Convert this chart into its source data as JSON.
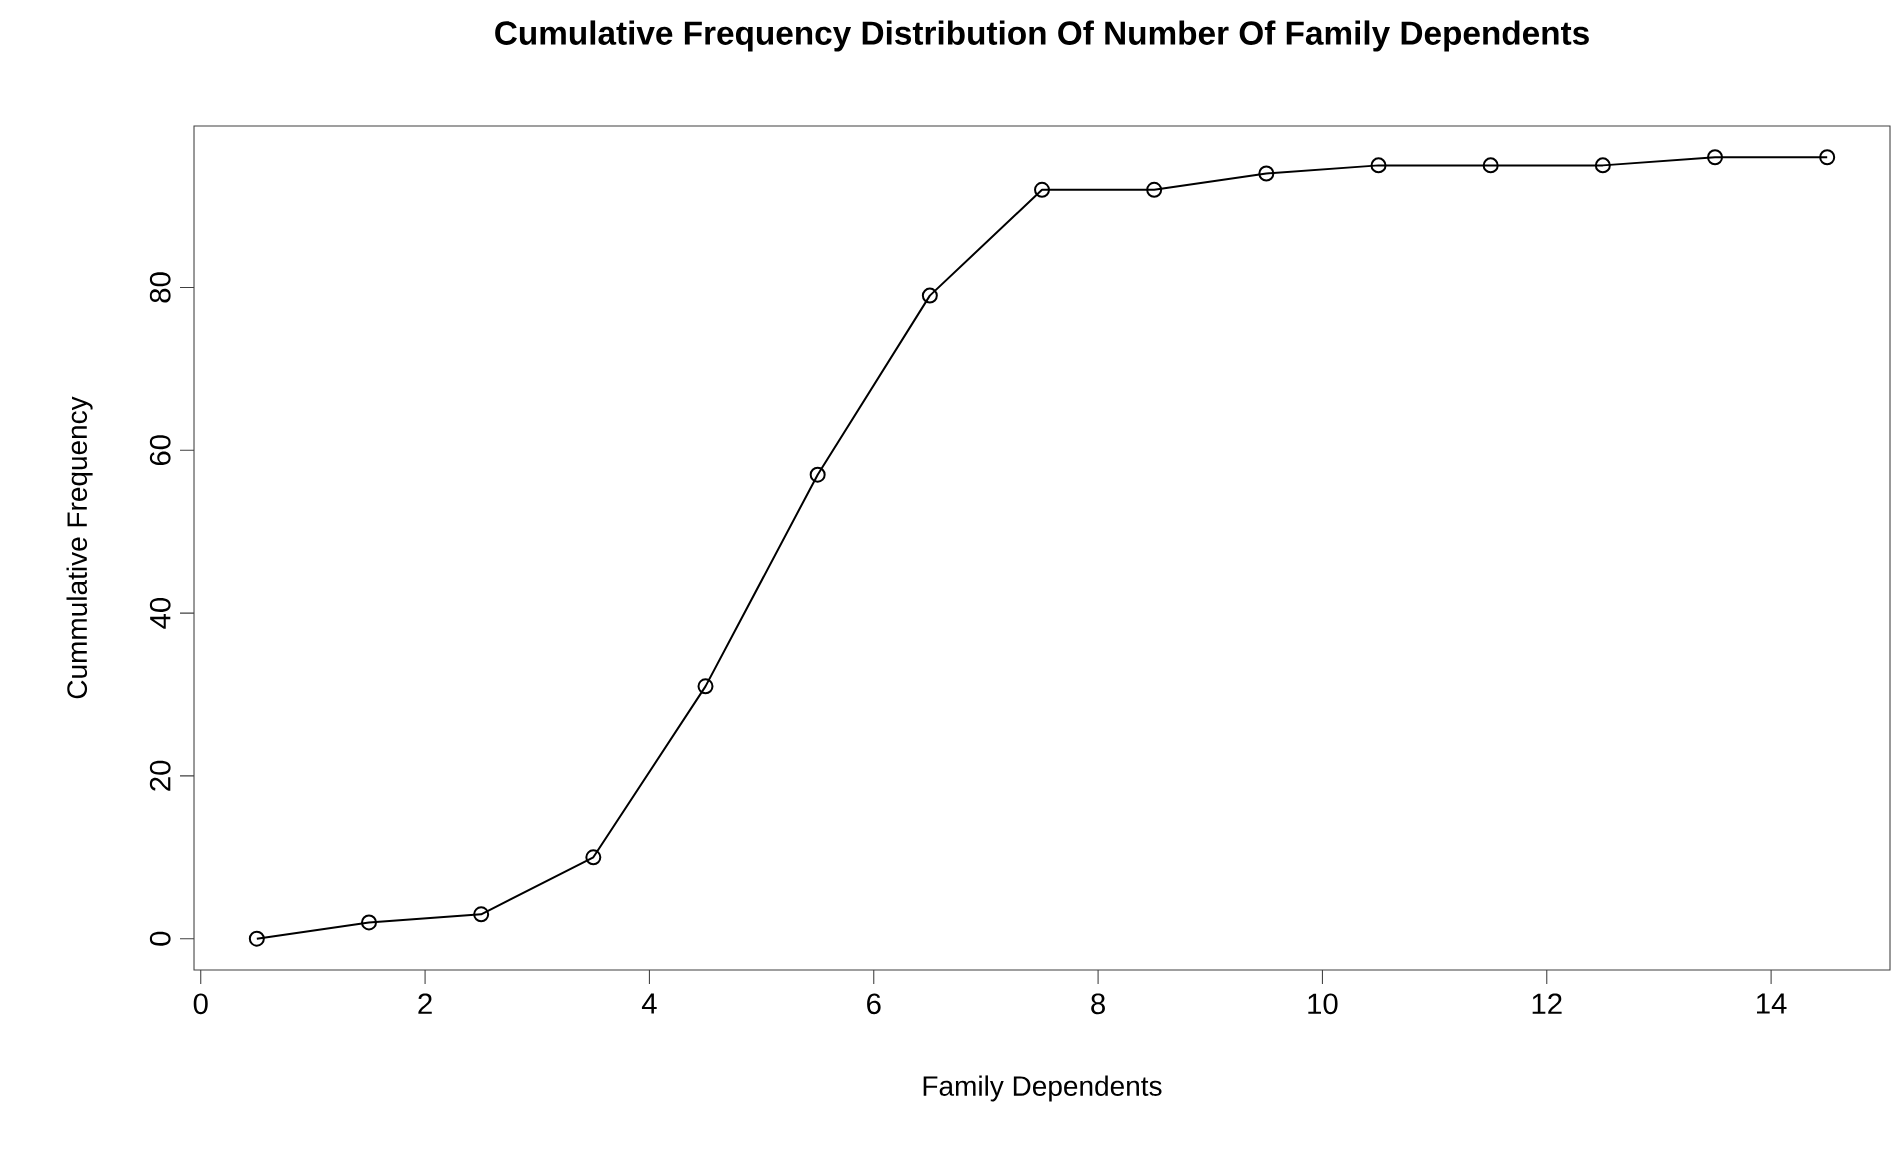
{
  "chart_data": {
    "type": "line",
    "title": "Cumulative Frequency Distribution Of Number Of Family Dependents",
    "xlabel": "Family Dependents",
    "ylabel": "Cummulative Frequency",
    "x": [
      0.5,
      1.5,
      2.5,
      3.5,
      4.5,
      5.5,
      6.5,
      7.5,
      8.5,
      9.5,
      10.5,
      11.5,
      12.5,
      13.5,
      14.5
    ],
    "series": [
      {
        "color": "#000000",
        "values": [
          0,
          2,
          3,
          10,
          31,
          57,
          79,
          92,
          92,
          94,
          95,
          95,
          95,
          96,
          96
        ]
      }
    ],
    "xlim": [
      -0.06,
      15.06
    ],
    "ylim": [
      -3.84,
      99.84
    ],
    "xticks": [
      0,
      2,
      4,
      6,
      8,
      10,
      12,
      14
    ],
    "yticks": [
      0,
      20,
      40,
      60,
      80
    ],
    "marker": "circle",
    "line_style": "solid",
    "grid": false
  }
}
